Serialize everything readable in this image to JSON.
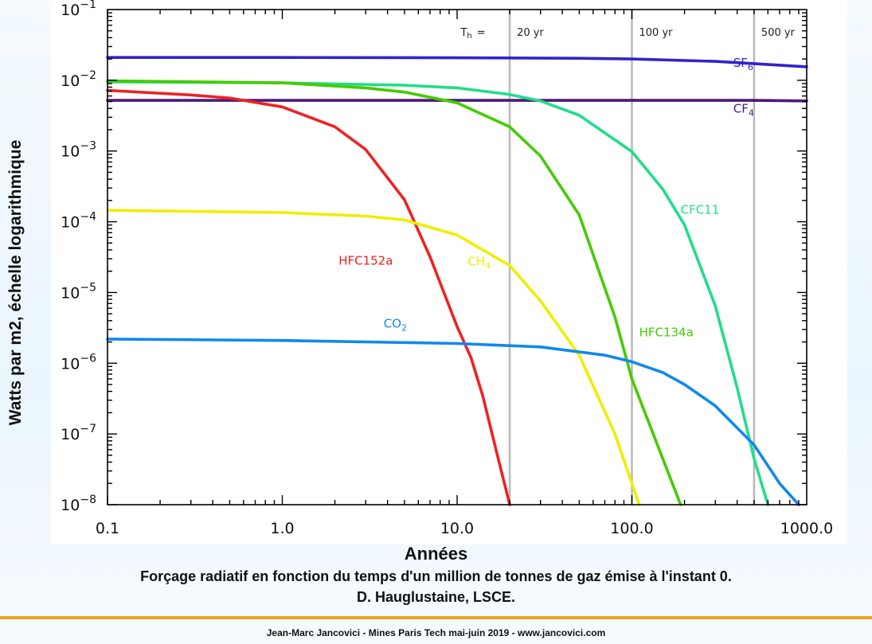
{
  "chart_data": {
    "type": "line",
    "xscale": "log",
    "yscale": "log",
    "xlim": [
      0.1,
      1000
    ],
    "ylim": [
      1e-08,
      0.1
    ],
    "grid": false,
    "xlabel": "Années",
    "ylabel": "Watts par m2, échelle logarithmique",
    "x_tick_labels": [
      "0.1",
      "1.0",
      "10.0",
      "100.0",
      "1000.0"
    ],
    "x_ticks": [
      0.1,
      1,
      10,
      100,
      1000
    ],
    "y_ticks": [
      {
        "value": 0.1,
        "base": "10",
        "exp": "−1"
      },
      {
        "value": 0.01,
        "base": "10",
        "exp": "−2"
      },
      {
        "value": 0.001,
        "base": "10",
        "exp": "−3"
      },
      {
        "value": 0.0001,
        "base": "10",
        "exp": "−4"
      },
      {
        "value": 1e-05,
        "base": "10",
        "exp": "−5"
      },
      {
        "value": 1e-06,
        "base": "10",
        "exp": "−6"
      },
      {
        "value": 1e-07,
        "base": "10",
        "exp": "−7"
      },
      {
        "value": 1e-08,
        "base": "10",
        "exp": "−8"
      }
    ],
    "horizons": {
      "prefix": "T",
      "prefix_sub": "h",
      "eq": "=",
      "lines": [
        {
          "x": 20,
          "label": "20 yr"
        },
        {
          "x": 100,
          "label": "100 yr"
        },
        {
          "x": 500,
          "label": "500 yr"
        }
      ]
    },
    "series": [
      {
        "key": "sf6",
        "base": "SF",
        "sub": "6",
        "color": "#3322cc",
        "label_pos": {
          "x": 380,
          "y": 0.0155
        },
        "points": [
          [
            0.1,
            0.021
          ],
          [
            1,
            0.021
          ],
          [
            10,
            0.0208
          ],
          [
            50,
            0.0205
          ],
          [
            100,
            0.02
          ],
          [
            300,
            0.0185
          ],
          [
            1000,
            0.0155
          ]
        ]
      },
      {
        "key": "cf4",
        "base": "CF",
        "sub": "4",
        "color": "#4a1a7a",
        "label_pos": {
          "x": 380,
          "y": 0.0035
        },
        "points": [
          [
            0.1,
            0.0052
          ],
          [
            1,
            0.0052
          ],
          [
            10,
            0.0052
          ],
          [
            100,
            0.0052
          ],
          [
            500,
            0.0052
          ],
          [
            1000,
            0.0051
          ]
        ]
      },
      {
        "key": "cfc11",
        "base": "CFC11",
        "sub": "",
        "color": "#22dd88",
        "label_pos": {
          "x": 190,
          "y": 0.00013
        },
        "points": [
          [
            0.1,
            0.0095
          ],
          [
            1,
            0.0092
          ],
          [
            5,
            0.0085
          ],
          [
            10,
            0.0078
          ],
          [
            20,
            0.0063
          ],
          [
            30,
            0.0051
          ],
          [
            50,
            0.0032
          ],
          [
            100,
            0.00098
          ],
          [
            150,
            0.00029
          ],
          [
            200,
            9e-05
          ],
          [
            300,
            6.5e-06
          ],
          [
            400,
            4.5e-07
          ],
          [
            500,
            4.5e-08
          ],
          [
            600,
            1e-08
          ]
        ]
      },
      {
        "key": "hfc134a",
        "base": "HFC134a",
        "sub": "",
        "color": "#44cc00",
        "label_pos": {
          "x": 110,
          "y": 2.4e-06
        },
        "points": [
          [
            0.1,
            0.0098
          ],
          [
            1,
            0.0092
          ],
          [
            3,
            0.0078
          ],
          [
            5,
            0.0068
          ],
          [
            10,
            0.0048
          ],
          [
            20,
            0.0022
          ],
          [
            30,
            0.00085
          ],
          [
            50,
            0.000125
          ],
          [
            80,
            4.5e-06
          ],
          [
            100,
            6e-07
          ],
          [
            150,
            4.5e-08
          ],
          [
            190,
            1e-08
          ]
        ]
      },
      {
        "key": "hfc152a",
        "base": "HFC152a",
        "sub": "",
        "color": "#ee2222",
        "label_pos": {
          "x": 2.1,
          "y": 2.48e-05
        },
        "points": [
          [
            0.1,
            0.0072
          ],
          [
            0.3,
            0.0062
          ],
          [
            0.5,
            0.0056
          ],
          [
            1,
            0.0042
          ],
          [
            2,
            0.0022
          ],
          [
            3,
            0.00105
          ],
          [
            5,
            0.000205
          ],
          [
            7,
            3.2e-05
          ],
          [
            10,
            3.3e-06
          ],
          [
            12,
            1.2e-06
          ],
          [
            14,
            3.5e-07
          ],
          [
            17,
            5e-08
          ],
          [
            20,
            1e-08
          ]
        ]
      },
      {
        "key": "ch4",
        "base": "CH",
        "sub": "4",
        "color": "#eeee00",
        "label_pos": {
          "x": 11.5,
          "y": 2.4e-05
        },
        "points": [
          [
            0.1,
            0.000145
          ],
          [
            1,
            0.000135
          ],
          [
            3,
            0.00012
          ],
          [
            5,
            0.000106
          ],
          [
            10,
            6.5e-05
          ],
          [
            20,
            2.4e-05
          ],
          [
            30,
            7.6e-06
          ],
          [
            50,
            1.3e-06
          ],
          [
            80,
            1e-07
          ],
          [
            110,
            1e-08
          ]
        ]
      },
      {
        "key": "co2",
        "base": "CO",
        "sub": "2",
        "color": "#1188ee",
        "label_pos": {
          "x": 3.8,
          "y": 3.2e-06
        },
        "points": [
          [
            0.1,
            2.2e-06
          ],
          [
            1,
            2.1e-06
          ],
          [
            10,
            1.9e-06
          ],
          [
            30,
            1.7e-06
          ],
          [
            70,
            1.3e-06
          ],
          [
            100,
            1.05e-06
          ],
          [
            150,
            7.4e-07
          ],
          [
            200,
            5e-07
          ],
          [
            300,
            2.5e-07
          ],
          [
            500,
            7e-08
          ],
          [
            700,
            2e-08
          ],
          [
            900,
            1e-08
          ]
        ]
      }
    ]
  },
  "caption": {
    "line1": "Forçage radiatif en fonction du temps d'un million de tonnes de gaz émise à l'instant 0.",
    "line2": "D. Hauglustaine, LSCE."
  },
  "footer": "Jean-Marc Jancovici - Mines Paris Tech mai-juin 2019 - www.jancovici.com"
}
